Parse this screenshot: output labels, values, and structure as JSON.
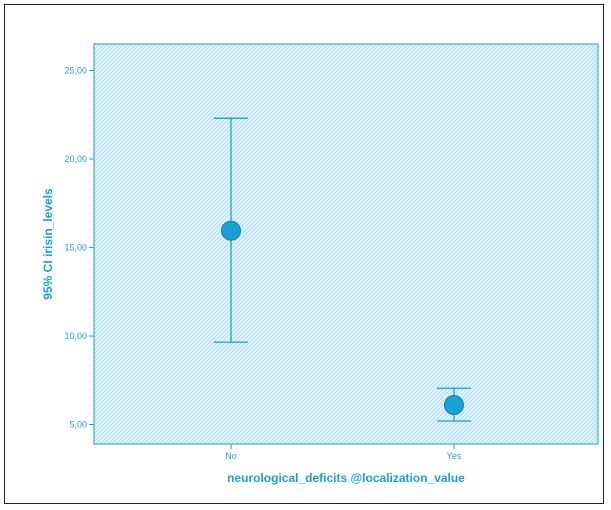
{
  "chart_data": {
    "type": "error-bar",
    "xlabel": "neurological_deficits @localization_value",
    "ylabel": "95% CI irisin_levels",
    "categories": [
      "No",
      "Yes"
    ],
    "series": [
      {
        "mean": [
          15.95,
          6.1
        ],
        "ci_lower": [
          9.65,
          5.2
        ],
        "ci_upper": [
          22.3,
          7.05
        ]
      }
    ],
    "ylim": [
      3.9,
      26.5
    ],
    "yticks": [
      5,
      10,
      15,
      20,
      25
    ],
    "ytick_labels": [
      "5,00",
      "10,00",
      "15,00",
      "20,00",
      "25,00"
    ],
    "grid": false,
    "colors": {
      "accent": "#1a9fd6",
      "plot_background": "#d6eef8",
      "hatch": "#a9d8ee",
      "frame": "#222222"
    }
  }
}
